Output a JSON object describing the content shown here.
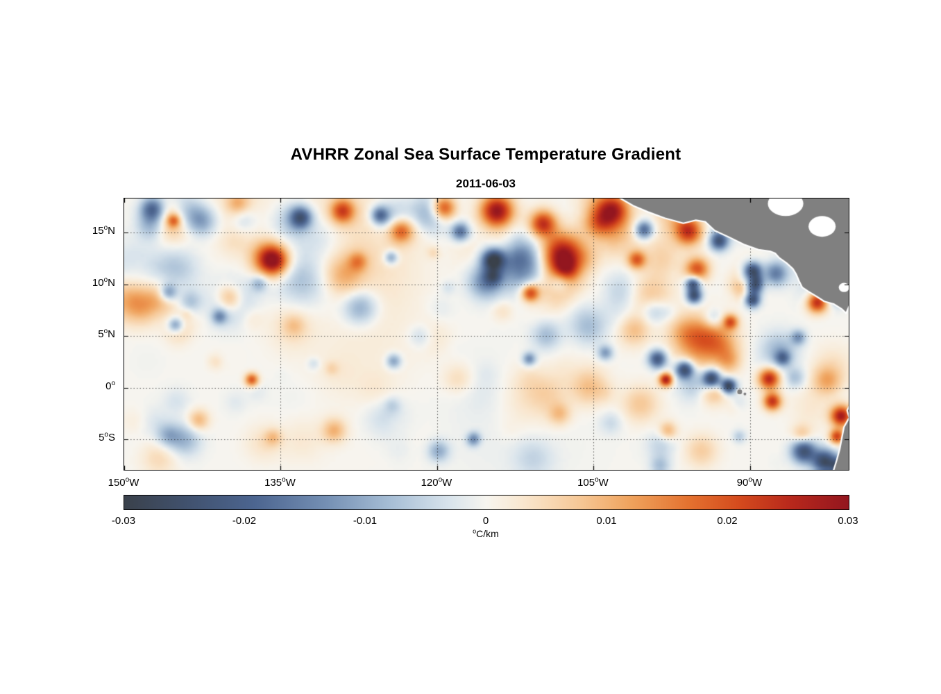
{
  "header": {
    "title": "AVHRR Zonal Sea Surface Temperature Gradient",
    "subtitle": "2011-06-03"
  },
  "colorbar": {
    "min": -0.03,
    "max": 0.03,
    "units_sup": "o",
    "units_text": "C/km",
    "ticks": [
      {
        "label": "-0.03",
        "value": -0.03
      },
      {
        "label": "-0.02",
        "value": -0.02
      },
      {
        "label": "-0.01",
        "value": -0.01
      },
      {
        "label": "0",
        "value": 0
      },
      {
        "label": "0.01",
        "value": 0.01
      },
      {
        "label": "0.02",
        "value": 0.02
      },
      {
        "label": "0.03",
        "value": 0.03
      }
    ]
  },
  "chart_data": {
    "type": "heatmap",
    "title": "AVHRR Zonal Sea Surface Temperature Gradient",
    "date": "2011-06-03",
    "variable": "zonal sea surface temperature gradient",
    "units": "°C/km",
    "value_range": [
      -0.03,
      0.03
    ],
    "x_axis": {
      "lon_west_edge": 150,
      "lon_east_edge": 80.55,
      "ticks": [
        {
          "label": "150",
          "sup": "o",
          "suffix": "W",
          "lon": 150
        },
        {
          "label": "135",
          "sup": "o",
          "suffix": "W",
          "lon": 135
        },
        {
          "label": "120",
          "sup": "o",
          "suffix": "W",
          "lon": 120
        },
        {
          "label": "105",
          "sup": "o",
          "suffix": "W",
          "lon": 105
        },
        {
          "label": "90",
          "sup": "o",
          "suffix": "W",
          "lon": 90
        }
      ]
    },
    "y_axis": {
      "lat_top": 18.3,
      "lat_bottom": -7.94,
      "ticks": [
        {
          "label": "15",
          "sup": "o",
          "suffix": "N",
          "lat": 15
        },
        {
          "label": "10",
          "sup": "o",
          "suffix": "N",
          "lat": 10
        },
        {
          "label": "5",
          "sup": "o",
          "suffix": "N",
          "lat": 5
        },
        {
          "label": "0",
          "sup": "o",
          "suffix": "",
          "lat": 0
        },
        {
          "label": "5",
          "sup": "o",
          "suffix": "S",
          "lat": -5
        }
      ]
    },
    "colormap": [
      {
        "t": 0.0,
        "color": "#3a414b"
      },
      {
        "t": 0.09,
        "color": "#41526f"
      },
      {
        "t": 0.18,
        "color": "#4c6590"
      },
      {
        "t": 0.28,
        "color": "#7590b4"
      },
      {
        "t": 0.37,
        "color": "#a8bfd6"
      },
      {
        "t": 0.45,
        "color": "#d9e4ec"
      },
      {
        "t": 0.5,
        "color": "#f7f5ef"
      },
      {
        "t": 0.55,
        "color": "#f9e7cf"
      },
      {
        "t": 0.63,
        "color": "#f6c795"
      },
      {
        "t": 0.7,
        "color": "#efa25c"
      },
      {
        "t": 0.78,
        "color": "#e4712f"
      },
      {
        "t": 0.85,
        "color": "#d44a1d"
      },
      {
        "t": 0.92,
        "color": "#b8281c"
      },
      {
        "t": 1.0,
        "color": "#93161f"
      }
    ],
    "land": {
      "color": "#808080",
      "central_america": [
        [
          102.5,
          18.35
        ],
        [
          101.2,
          17.6
        ],
        [
          99.8,
          17.0
        ],
        [
          98.2,
          16.4
        ],
        [
          96.4,
          15.9
        ],
        [
          95.2,
          16.2
        ],
        [
          94.3,
          16.05
        ],
        [
          93.4,
          15.2
        ],
        [
          92.0,
          14.55
        ],
        [
          90.6,
          13.85
        ],
        [
          89.2,
          13.35
        ],
        [
          88.1,
          13.2
        ],
        [
          87.6,
          13.0
        ],
        [
          87.2,
          12.55
        ],
        [
          86.5,
          12.05
        ],
        [
          85.9,
          11.5
        ],
        [
          85.6,
          11.0
        ],
        [
          85.3,
          10.3
        ],
        [
          85.0,
          9.7
        ],
        [
          84.4,
          9.3
        ],
        [
          83.6,
          8.8
        ],
        [
          82.9,
          8.35
        ],
        [
          82.0,
          8.1
        ],
        [
          81.2,
          7.6
        ],
        [
          80.8,
          7.2
        ],
        [
          80.5,
          7.9
        ]
      ],
      "south_america": [
        [
          80.2,
          -1.2
        ],
        [
          80.7,
          -2.2
        ],
        [
          80.5,
          -2.9
        ],
        [
          81.0,
          -3.8
        ],
        [
          81.2,
          -4.8
        ],
        [
          81.4,
          -5.9
        ],
        [
          81.7,
          -7.0
        ],
        [
          82.1,
          -8.3
        ]
      ],
      "caribbean_gaps": [
        [
          86.6,
          17.8,
          1.7,
          1.2
        ],
        [
          83.1,
          15.6,
          1.3,
          1.0
        ],
        [
          81.0,
          9.7,
          0.5,
          0.45
        ]
      ],
      "galapagos": [
        [
          91.0,
          -0.4,
          0.27
        ],
        [
          90.5,
          -0.6,
          0.17
        ]
      ]
    },
    "features": [
      {
        "lon": 114.4,
        "lat": 17.2,
        "r": 1.1,
        "amp": 0.03
      },
      {
        "lon": 108.2,
        "lat": 13.0,
        "r": 1.4,
        "amp": 0.03
      },
      {
        "lon": 103.3,
        "lat": 17.3,
        "r": 1.1,
        "amp": 0.026
      },
      {
        "lon": 96.0,
        "lat": 15.2,
        "r": 0.9,
        "amp": 0.022
      },
      {
        "lon": 135.8,
        "lat": 12.4,
        "r": 1.0,
        "amp": 0.027
      },
      {
        "lon": 129.2,
        "lat": 17.2,
        "r": 0.8,
        "amp": 0.02
      },
      {
        "lon": 123.6,
        "lat": 15.3,
        "r": 0.8,
        "amp": 0.018
      },
      {
        "lon": 119.5,
        "lat": 17.5,
        "r": 0.8,
        "amp": 0.022
      },
      {
        "lon": 111.2,
        "lat": 9.3,
        "r": 0.6,
        "amp": 0.022
      },
      {
        "lon": 95.2,
        "lat": 11.6,
        "r": 0.8,
        "amp": 0.02
      },
      {
        "lon": 83.7,
        "lat": 8.4,
        "r": 0.7,
        "amp": 0.026
      },
      {
        "lon": 81.2,
        "lat": 10.3,
        "r": 0.6,
        "amp": 0.024
      },
      {
        "lon": 110.0,
        "lat": 16.0,
        "r": 0.9,
        "amp": 0.024
      },
      {
        "lon": 101.0,
        "lat": 12.5,
        "r": 0.6,
        "amp": 0.018
      },
      {
        "lon": 133.2,
        "lat": 16.6,
        "r": 0.7,
        "amp": -0.02
      },
      {
        "lon": 125.6,
        "lat": 16.8,
        "r": 0.6,
        "amp": -0.018
      },
      {
        "lon": 117.9,
        "lat": 15.2,
        "r": 0.6,
        "amp": -0.018
      },
      {
        "lon": 114.9,
        "lat": 12.5,
        "r": 0.7,
        "amp": -0.016
      },
      {
        "lon": 100.3,
        "lat": 15.4,
        "r": 0.6,
        "amp": -0.02
      },
      {
        "lon": 95.6,
        "lat": 10.2,
        "r": 0.5,
        "amp": -0.024
      },
      {
        "lon": 95.5,
        "lat": 9.0,
        "r": 0.5,
        "amp": -0.024
      },
      {
        "lon": 89.9,
        "lat": 11.4,
        "r": 0.6,
        "amp": -0.028
      },
      {
        "lon": 89.8,
        "lat": 9.9,
        "r": 0.6,
        "amp": -0.028
      },
      {
        "lon": 89.9,
        "lat": 8.6,
        "r": 0.5,
        "amp": -0.024
      },
      {
        "lon": 93.1,
        "lat": 14.3,
        "r": 0.6,
        "amp": -0.022
      },
      {
        "lon": 147.4,
        "lat": 17.4,
        "r": 0.8,
        "amp": -0.02
      },
      {
        "lon": 145.9,
        "lat": 9.3,
        "r": 0.6,
        "amp": -0.016
      },
      {
        "lon": 145.2,
        "lat": 6.2,
        "r": 0.5,
        "amp": -0.014
      },
      {
        "lon": 141.0,
        "lat": 7.0,
        "r": 0.5,
        "amp": -0.012
      },
      {
        "lon": 99.0,
        "lat": 2.9,
        "r": 0.6,
        "amp": -0.022
      },
      {
        "lon": 96.4,
        "lat": 1.9,
        "r": 0.6,
        "amp": -0.026
      },
      {
        "lon": 93.8,
        "lat": 1.0,
        "r": 0.6,
        "amp": -0.028
      },
      {
        "lon": 92.2,
        "lat": 0.3,
        "r": 0.5,
        "amp": -0.03
      },
      {
        "lon": 98.2,
        "lat": 0.9,
        "r": 0.45,
        "amp": 0.028
      },
      {
        "lon": 88.3,
        "lat": 1.0,
        "r": 0.7,
        "amp": 0.026
      },
      {
        "lon": 88.0,
        "lat": -1.2,
        "r": 0.6,
        "amp": 0.024
      },
      {
        "lon": 81.4,
        "lat": -2.6,
        "r": 0.7,
        "amp": 0.028
      },
      {
        "lon": 81.8,
        "lat": -4.6,
        "r": 0.5,
        "amp": 0.022
      },
      {
        "lon": 85.0,
        "lat": -6.0,
        "r": 0.8,
        "amp": -0.024
      },
      {
        "lon": 83.0,
        "lat": -7.0,
        "r": 0.8,
        "amp": -0.026
      },
      {
        "lon": 81.5,
        "lat": -7.5,
        "r": 0.6,
        "amp": -0.024
      },
      {
        "lon": 137.9,
        "lat": 0.9,
        "r": 0.45,
        "amp": 0.02
      },
      {
        "lon": 124.3,
        "lat": 2.7,
        "r": 0.5,
        "amp": -0.012
      },
      {
        "lon": 111.3,
        "lat": 2.9,
        "r": 0.45,
        "amp": -0.014
      },
      {
        "lon": 104.0,
        "lat": 3.5,
        "r": 0.5,
        "amp": -0.012
      },
      {
        "lon": 87.0,
        "lat": 3.0,
        "r": 0.5,
        "amp": -0.014
      },
      {
        "lon": 92.0,
        "lat": 6.5,
        "r": 0.5,
        "amp": 0.018
      },
      {
        "lon": 85.5,
        "lat": 5.0,
        "r": 0.5,
        "amp": -0.012
      },
      {
        "lon": 130.0,
        "lat": -4.0,
        "r": 0.8,
        "amp": 0.01
      },
      {
        "lon": 120.0,
        "lat": -6.0,
        "r": 0.7,
        "amp": -0.01
      },
      {
        "lon": 143.0,
        "lat": -3.0,
        "r": 0.7,
        "amp": 0.01
      },
      {
        "lon": 98.0,
        "lat": -4.0,
        "r": 0.6,
        "amp": 0.01
      }
    ],
    "noise": {
      "seed": 12,
      "background_blobs": 170,
      "background_amp": 0.009,
      "large_blobs": 12,
      "large_amp": 0.0042
    }
  }
}
